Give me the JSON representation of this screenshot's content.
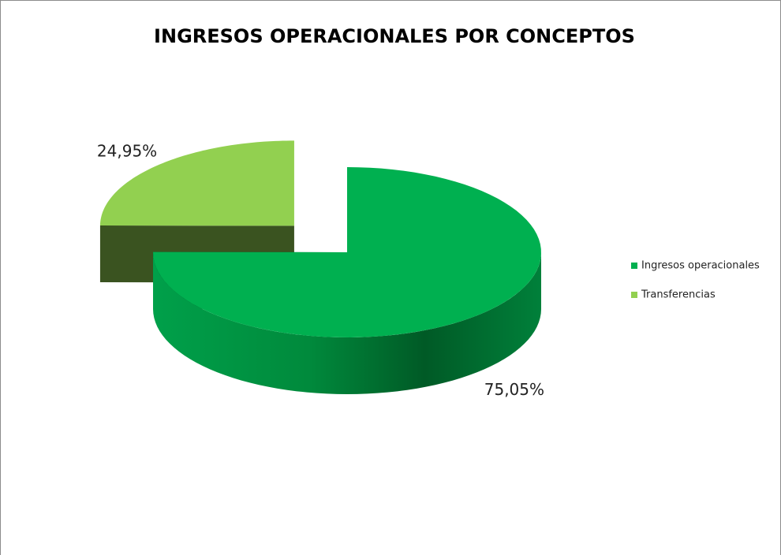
{
  "chart_data": {
    "type": "pie",
    "title": "INGRESOS OPERACIONALES POR CONCEPTOS",
    "categories": [
      "Ingresos operacionales",
      "Transferencias"
    ],
    "values": [
      75.05,
      24.95
    ],
    "value_labels": [
      "75,05%",
      "24,95%"
    ],
    "colors": [
      "#00b050",
      "#92d050"
    ],
    "exploded": [
      false,
      true
    ],
    "legend": "right"
  }
}
